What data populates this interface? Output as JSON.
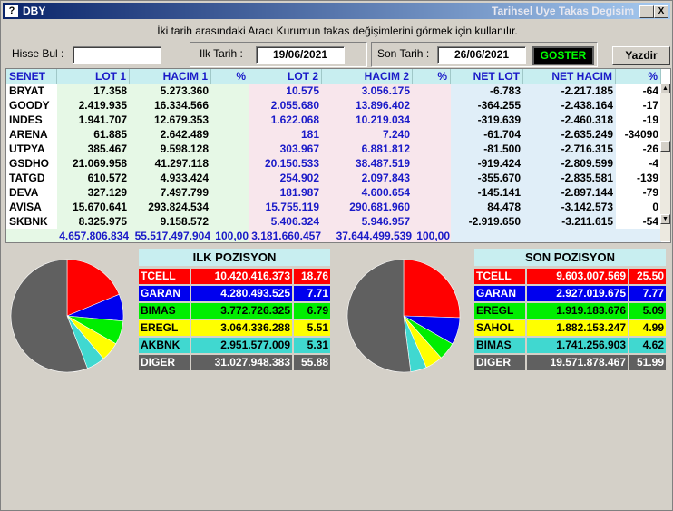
{
  "window": {
    "app_icon": "?",
    "title": "DBY",
    "subtitle": "Tarihsel Uye Takas Degisim",
    "minimize_label": "_",
    "close_label": "X"
  },
  "description": "İki tarih arasındaki  Aracı Kurumun takas değişimlerini görmek için kullanılır.",
  "toolbar": {
    "search_label": "Hisse Bul :",
    "search_value": "",
    "start_label": "Ilk Tarih :",
    "start_date": "19/06/2021",
    "end_label": "Son Tarih :",
    "end_date": "26/06/2021",
    "show_button": "GOSTER",
    "print_button": "Yazdir"
  },
  "table": {
    "headers": [
      "SENET",
      "LOT 1",
      "HACIM 1",
      "%",
      "LOT 2",
      "HACIM 2",
      "%",
      "NET LOT",
      "NET HACIM",
      "%"
    ],
    "rows": [
      [
        "BRYAT",
        "17.358",
        "5.273.360",
        "",
        "10.575",
        "3.056.175",
        "",
        "-6.783",
        "-2.217.185",
        "-64"
      ],
      [
        "GOODY",
        "2.419.935",
        "16.334.566",
        "",
        "2.055.680",
        "13.896.402",
        "",
        "-364.255",
        "-2.438.164",
        "-17"
      ],
      [
        "INDES",
        "1.941.707",
        "12.679.353",
        "",
        "1.622.068",
        "10.219.034",
        "",
        "-319.639",
        "-2.460.318",
        "-19"
      ],
      [
        "ARENA",
        "61.885",
        "2.642.489",
        "",
        "181",
        "7.240",
        "",
        "-61.704",
        "-2.635.249",
        "-34090"
      ],
      [
        "UTPYA",
        "385.467",
        "9.598.128",
        "",
        "303.967",
        "6.881.812",
        "",
        "-81.500",
        "-2.716.315",
        "-26"
      ],
      [
        "GSDHO",
        "21.069.958",
        "41.297.118",
        "",
        "20.150.533",
        "38.487.519",
        "",
        "-919.424",
        "-2.809.599",
        "-4"
      ],
      [
        "TATGD",
        "610.572",
        "4.933.424",
        "",
        "254.902",
        "2.097.843",
        "",
        "-355.670",
        "-2.835.581",
        "-139"
      ],
      [
        "DEVA",
        "327.129",
        "7.497.799",
        "",
        "181.987",
        "4.600.654",
        "",
        "-145.141",
        "-2.897.144",
        "-79"
      ],
      [
        "AVISA",
        "15.670.641",
        "293.824.534",
        "",
        "15.755.119",
        "290.681.960",
        "",
        "84.478",
        "-3.142.573",
        "0"
      ],
      [
        "SKBNK",
        "8.325.975",
        "9.158.572",
        "",
        "5.406.324",
        "5.946.957",
        "",
        "-2.919.650",
        "-3.211.615",
        "-54"
      ]
    ],
    "totals": [
      "",
      "4.657.806.834",
      "55.517.497.904",
      "100,00",
      "3.181.660.457",
      "37.644.499.539",
      "100,00",
      "",
      "",
      ""
    ]
  },
  "first_position": {
    "title": "ILK POZISYON",
    "rows": [
      {
        "name": "TCELL",
        "value": "10.420.416.373",
        "pct": "18.76",
        "color": "#ff0000",
        "text": "#ffffff"
      },
      {
        "name": "GARAN",
        "value": "4.280.493.525",
        "pct": "7.71",
        "color": "#0000ee",
        "text": "#ffffff"
      },
      {
        "name": "BIMAS",
        "value": "3.772.726.325",
        "pct": "6.79",
        "color": "#00ee00",
        "text": "#000000"
      },
      {
        "name": "EREGL",
        "value": "3.064.336.288",
        "pct": "5.51",
        "color": "#ffff00",
        "text": "#000000"
      },
      {
        "name": "AKBNK",
        "value": "2.951.577.009",
        "pct": "5.31",
        "color": "#40d8d0",
        "text": "#000000"
      },
      {
        "name": "DIGER",
        "value": "31.027.948.383",
        "pct": "55.88",
        "color": "#606060",
        "text": "#ffffff"
      }
    ]
  },
  "last_position": {
    "title": "SON POZISYON",
    "rows": [
      {
        "name": "TCELL",
        "value": "9.603.007.569",
        "pct": "25.50",
        "color": "#ff0000",
        "text": "#ffffff"
      },
      {
        "name": "GARAN",
        "value": "2.927.019.675",
        "pct": "7.77",
        "color": "#0000ee",
        "text": "#ffffff"
      },
      {
        "name": "EREGL",
        "value": "1.919.183.676",
        "pct": "5.09",
        "color": "#00ee00",
        "text": "#000000"
      },
      {
        "name": "SAHOL",
        "value": "1.882.153.247",
        "pct": "4.99",
        "color": "#ffff00",
        "text": "#000000"
      },
      {
        "name": "BIMAS",
        "value": "1.741.256.903",
        "pct": "4.62",
        "color": "#40d8d0",
        "text": "#000000"
      },
      {
        "name": "DIGER",
        "value": "19.571.878.467",
        "pct": "51.99",
        "color": "#606060",
        "text": "#ffffff"
      }
    ]
  }
}
